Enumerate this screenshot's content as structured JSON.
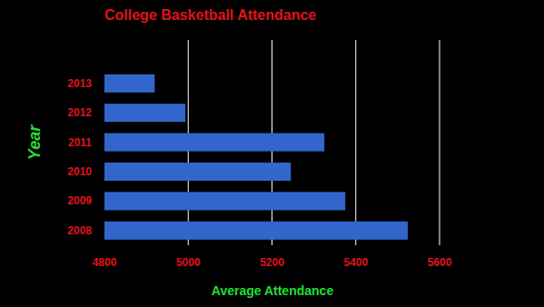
{
  "chart_data": {
    "type": "bar",
    "title": "College Basketball Attendance",
    "x_label": "Average Attendance",
    "y_label": "Year",
    "orientation": "horizontal",
    "categories": [
      "2008",
      "2009",
      "2010",
      "2011",
      "2012",
      "2013"
    ],
    "values": [
      5524,
      5375,
      5245,
      5325,
      4993,
      4920
    ],
    "color": "#3366cc",
    "xlim": [
      4800,
      5600
    ],
    "xticks": [
      4800,
      5000,
      5200,
      5400,
      5600
    ],
    "grid": true
  }
}
